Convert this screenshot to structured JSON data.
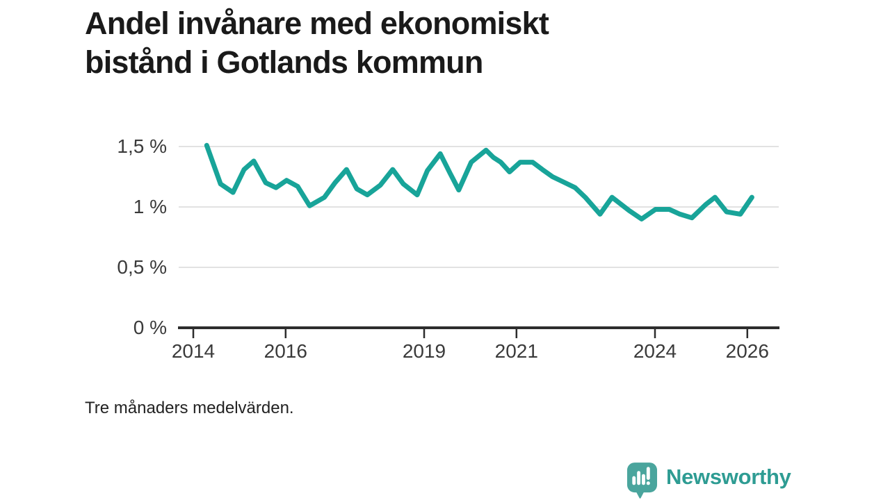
{
  "title_lines": [
    "Andel invånare med ekonomiskt",
    "bistånd i Gotlands kommun"
  ],
  "caption": "Tre månaders medelvärden.",
  "branding": {
    "logo_text": "Newsworthy",
    "logo_icon": "newsworthy-chart-bubble-icon"
  },
  "colors": {
    "line": "#18a499",
    "grid": "#e2e2e2",
    "axis": "#2d2d2d",
    "tick_text": "#3a3a3a",
    "title_text": "#1a1a1a",
    "brand_icon": "#4aa59d",
    "brand_text": "#2e9c93",
    "background": "#ffffff"
  },
  "chart_data": {
    "type": "line",
    "title": "Andel invånare med ekonomiskt bistånd i Gotlands kommun",
    "note": "Tre månaders medelvärden.",
    "unit": "%",
    "grid": true,
    "legend": false,
    "x_range": [
      2013.7,
      2026.7
    ],
    "y_range": [
      0,
      1.65
    ],
    "y_ticks": [
      {
        "value": 0,
        "label": "0 %"
      },
      {
        "value": 0.5,
        "label": "0,5 %"
      },
      {
        "value": 1,
        "label": "1 %"
      },
      {
        "value": 1.5,
        "label": "1,5 %"
      }
    ],
    "x_ticks": [
      {
        "value": 2014,
        "label": "2014"
      },
      {
        "value": 2016,
        "label": "2016"
      },
      {
        "value": 2019,
        "label": "2019"
      },
      {
        "value": 2021,
        "label": "2021"
      },
      {
        "value": 2024,
        "label": "2024"
      },
      {
        "value": 2026,
        "label": "2026"
      }
    ],
    "series": [
      {
        "name": "Andel invånare med ekonomiskt bistånd",
        "color": "#18a499",
        "points": [
          [
            2014.29,
            1.51
          ],
          [
            2014.59,
            1.19
          ],
          [
            2014.86,
            1.12
          ],
          [
            2015.1,
            1.31
          ],
          [
            2015.31,
            1.38
          ],
          [
            2015.57,
            1.2
          ],
          [
            2015.79,
            1.16
          ],
          [
            2016.02,
            1.22
          ],
          [
            2016.26,
            1.17
          ],
          [
            2016.52,
            1.01
          ],
          [
            2016.84,
            1.08
          ],
          [
            2017.07,
            1.2
          ],
          [
            2017.32,
            1.31
          ],
          [
            2017.54,
            1.15
          ],
          [
            2017.77,
            1.1
          ],
          [
            2018.05,
            1.18
          ],
          [
            2018.32,
            1.31
          ],
          [
            2018.55,
            1.19
          ],
          [
            2018.85,
            1.1
          ],
          [
            2019.07,
            1.3
          ],
          [
            2019.35,
            1.44
          ],
          [
            2019.56,
            1.28
          ],
          [
            2019.75,
            1.14
          ],
          [
            2020.02,
            1.37
          ],
          [
            2020.34,
            1.47
          ],
          [
            2020.5,
            1.41
          ],
          [
            2020.66,
            1.37
          ],
          [
            2020.85,
            1.29
          ],
          [
            2021.08,
            1.37
          ],
          [
            2021.35,
            1.37
          ],
          [
            2021.56,
            1.31
          ],
          [
            2021.78,
            1.25
          ],
          [
            2022.0,
            1.21
          ],
          [
            2022.27,
            1.16
          ],
          [
            2022.49,
            1.08
          ],
          [
            2022.81,
            0.94
          ],
          [
            2023.07,
            1.08
          ],
          [
            2023.44,
            0.97
          ],
          [
            2023.71,
            0.9
          ],
          [
            2024.01,
            0.98
          ],
          [
            2024.31,
            0.98
          ],
          [
            2024.54,
            0.94
          ],
          [
            2024.8,
            0.91
          ],
          [
            2025.1,
            1.02
          ],
          [
            2025.3,
            1.08
          ],
          [
            2025.55,
            0.96
          ],
          [
            2025.85,
            0.94
          ],
          [
            2026.1,
            1.08
          ]
        ]
      }
    ]
  }
}
